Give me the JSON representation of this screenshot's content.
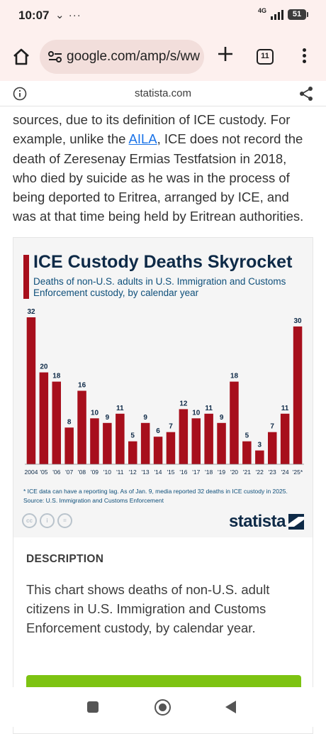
{
  "status_bar": {
    "time": "10:07",
    "left_icons": "⌄ ···",
    "network": "4G",
    "battery": "51"
  },
  "toolbar": {
    "url": "google.com/amp/s/ww",
    "tab_count": "11"
  },
  "amp_bar": {
    "domain": "statista.com"
  },
  "article": {
    "before_link": "sources, due to its definition of ICE custody. For example, unlike the ",
    "link_text": "AILA",
    "after_link": ", ICE does not record the death of Zeresenay Ermias Testfatsion in 2018, who died by suicide as he was in the process of being deported to Eritrea, arranged by ICE, and was at that time being held by Eritrean authorities."
  },
  "chart_meta": {
    "footnote_1": "* ICE data can have a reporting lag. As of Jan. 9, media reported 32 deaths in ICE custody in 2025.",
    "footnote_2": "Source: U.S. Immigration and Customs Enforcement",
    "cc_icons": [
      "cc",
      "i",
      "="
    ],
    "logo_text": "statista"
  },
  "chart_data": {
    "type": "bar",
    "title": "ICE Custody Deaths Skyrocket",
    "subtitle": "Deaths of non-U.S. adults in U.S. Immigration and Customs Enforcement custody, by calendar year",
    "categories": [
      "2004",
      "'05",
      "'06",
      "'07",
      "'08",
      "'09",
      "'10",
      "'11",
      "'12",
      "'13",
      "'14",
      "'15",
      "'16",
      "'17",
      "'18",
      "'19",
      "'20",
      "'21",
      "'22",
      "'23",
      "'24",
      "'25*"
    ],
    "values": [
      32,
      20,
      18,
      8,
      16,
      10,
      9,
      11,
      5,
      9,
      6,
      7,
      12,
      10,
      11,
      9,
      18,
      5,
      3,
      7,
      11,
      30
    ],
    "ylim": [
      0,
      32
    ],
    "grid": false,
    "legend": "none",
    "bar_color": "#a70f1c"
  },
  "description": {
    "heading": "DESCRIPTION",
    "text": "This chart shows deaths of non-U.S. adult citizens in U.S. Immigration and Customs Enforcement custody, by calendar year."
  }
}
